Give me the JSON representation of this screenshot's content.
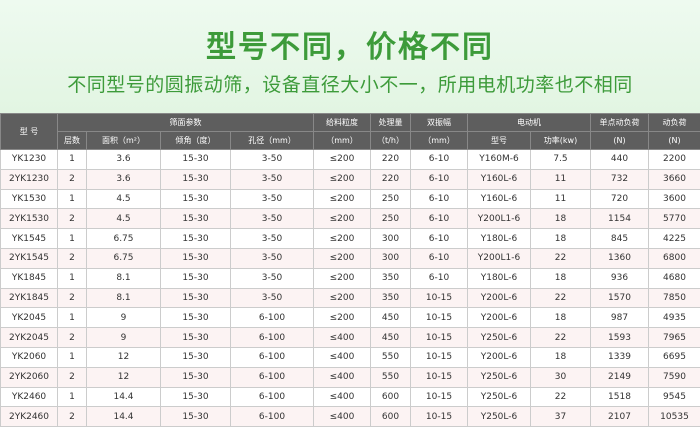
{
  "title": "型号不同，价格不同",
  "subtitle": "不同型号的圆振动筛，设备直径大小不一，所用电机功率也不相同",
  "colors": {
    "accent": "#3d9b3a",
    "header_bg": "#5e5e5e"
  },
  "table": {
    "h_model": "型 号",
    "h_screen": "筛面参数",
    "h_layers": "层数",
    "h_area": "面积（m²）",
    "h_angle": "倾角（度）",
    "h_aperture": "孔径（mm）",
    "h_feed": "给料粒度",
    "h_feed_unit": "（mm）",
    "h_cap": "处理量",
    "h_cap_unit": "（t/h）",
    "h_amp": "双振幅",
    "h_amp_unit": "（mm）",
    "h_motor": "电动机",
    "h_motor_model": "型号",
    "h_power": "功率(kw)",
    "h_single": "单点动负荷",
    "h_single_unit": "(N)",
    "h_dyn": "动负荷",
    "h_dyn_unit": "(N)",
    "rows": [
      [
        "YK1230",
        "1",
        "3.6",
        "15-30",
        "3-50",
        "≤200",
        "220",
        "6-10",
        "Y160M-6",
        "7.5",
        "440",
        "2200"
      ],
      [
        "2YK1230",
        "2",
        "3.6",
        "15-30",
        "3-50",
        "≤200",
        "220",
        "6-10",
        "Y160L-6",
        "11",
        "732",
        "3660"
      ],
      [
        "YK1530",
        "1",
        "4.5",
        "15-30",
        "3-50",
        "≤200",
        "250",
        "6-10",
        "Y160L-6",
        "11",
        "720",
        "3600"
      ],
      [
        "2YK1530",
        "2",
        "4.5",
        "15-30",
        "3-50",
        "≤200",
        "250",
        "6-10",
        "Y200L1-6",
        "18",
        "1154",
        "5770"
      ],
      [
        "YK1545",
        "1",
        "6.75",
        "15-30",
        "3-50",
        "≤200",
        "300",
        "6-10",
        "Y180L-6",
        "18",
        "845",
        "4225"
      ],
      [
        "2YK1545",
        "2",
        "6.75",
        "15-30",
        "3-50",
        "≤200",
        "300",
        "6-10",
        "Y200L1-6",
        "22",
        "1360",
        "6800"
      ],
      [
        "YK1845",
        "1",
        "8.1",
        "15-30",
        "3-50",
        "≤200",
        "350",
        "6-10",
        "Y180L-6",
        "18",
        "936",
        "4680"
      ],
      [
        "2YK1845",
        "2",
        "8.1",
        "15-30",
        "3-50",
        "≤200",
        "350",
        "10-15",
        "Y200L-6",
        "22",
        "1570",
        "7850"
      ],
      [
        "YK2045",
        "1",
        "9",
        "15-30",
        "6-100",
        "≤200",
        "450",
        "10-15",
        "Y200L-6",
        "18",
        "987",
        "4935"
      ],
      [
        "2YK2045",
        "2",
        "9",
        "15-30",
        "6-100",
        "≤400",
        "450",
        "10-15",
        "Y250L-6",
        "22",
        "1593",
        "7965"
      ],
      [
        "YK2060",
        "1",
        "12",
        "15-30",
        "6-100",
        "≤400",
        "550",
        "10-15",
        "Y200L-6",
        "18",
        "1339",
        "6695"
      ],
      [
        "2YK2060",
        "2",
        "12",
        "15-30",
        "6-100",
        "≤400",
        "550",
        "10-15",
        "Y250L-6",
        "30",
        "2149",
        "7590"
      ],
      [
        "YK2460",
        "1",
        "14.4",
        "15-30",
        "6-100",
        "≤400",
        "600",
        "10-15",
        "Y250L-6",
        "22",
        "1518",
        "9545"
      ],
      [
        "2YK2460",
        "2",
        "14.4",
        "15-30",
        "6-100",
        "≤400",
        "600",
        "10-15",
        "Y250L-6",
        "37",
        "2107",
        "10535"
      ]
    ]
  }
}
